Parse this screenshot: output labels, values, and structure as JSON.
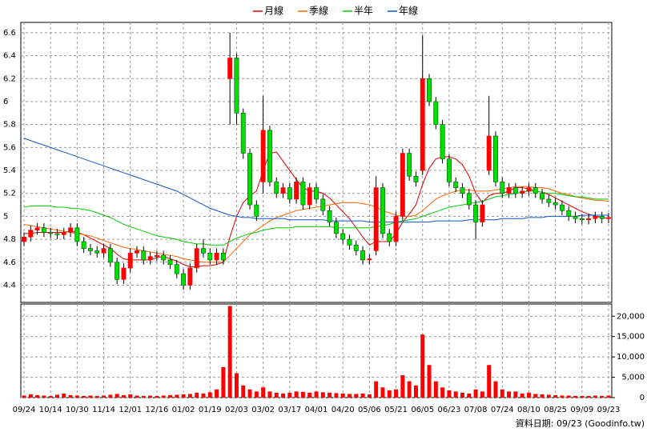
{
  "chart_data": [
    {
      "type": "candlestick",
      "categories": [
        "09/24",
        null,
        null,
        null,
        "10/14",
        null,
        null,
        null,
        "10/30",
        null,
        null,
        null,
        "11/14",
        null,
        null,
        null,
        "12/01",
        null,
        null,
        null,
        "12/16",
        null,
        null,
        null,
        "01/02",
        null,
        null,
        null,
        "01/19",
        null,
        null,
        null,
        "02/03",
        null,
        null,
        null,
        "03/02",
        null,
        null,
        null,
        "03/17",
        null,
        null,
        null,
        "04/01",
        null,
        null,
        null,
        "04/20",
        null,
        null,
        null,
        "05/06",
        null,
        null,
        null,
        "05/21",
        null,
        null,
        null,
        "06/05",
        null,
        null,
        null,
        "06/23",
        null,
        null,
        null,
        "07/08",
        null,
        null,
        null,
        "07/24",
        null,
        null,
        null,
        "08/10",
        null,
        null,
        null,
        "08/25",
        null,
        null,
        null,
        "09/09",
        null,
        null,
        null,
        "09/23"
      ],
      "open": [
        4.78,
        4.82,
        4.88,
        4.9,
        4.86,
        4.85,
        4.84,
        4.86,
        4.9,
        4.78,
        4.72,
        4.7,
        4.68,
        4.72,
        4.6,
        4.45,
        4.55,
        4.68,
        4.7,
        4.62,
        4.65,
        4.66,
        4.62,
        4.58,
        4.5,
        4.4,
        4.55,
        4.72,
        4.68,
        4.62,
        4.68,
        6.2,
        6.38,
        5.9,
        5.55,
        5.1,
        5.3,
        5.75,
        5.3,
        5.2,
        5.25,
        5.15,
        5.3,
        5.1,
        5.25,
        5.15,
        5.05,
        4.95,
        4.85,
        4.8,
        4.75,
        4.7,
        4.62,
        4.7,
        5.25,
        4.85,
        4.78,
        5.0,
        5.55,
        5.35,
        5.4,
        6.2,
        6.0,
        5.8,
        5.5,
        5.3,
        5.25,
        5.2,
        5.1,
        4.95,
        5.4,
        5.7,
        5.3,
        5.2,
        5.25,
        5.2,
        5.22,
        5.25,
        5.2,
        5.15,
        5.12,
        5.1,
        5.05,
        5.0,
        4.98,
        4.97,
        4.98,
        5.0,
        4.98
      ],
      "high": [
        4.86,
        4.92,
        4.94,
        4.94,
        4.9,
        4.89,
        4.9,
        4.94,
        4.94,
        4.82,
        4.76,
        4.74,
        4.76,
        4.76,
        4.64,
        4.59,
        4.72,
        4.74,
        4.74,
        4.69,
        4.7,
        4.7,
        4.66,
        4.62,
        4.54,
        4.59,
        4.76,
        4.8,
        4.72,
        4.72,
        4.72,
        6.6,
        6.42,
        5.94,
        5.59,
        5.14,
        6.05,
        5.79,
        5.34,
        5.29,
        5.29,
        5.34,
        5.34,
        5.29,
        5.29,
        5.19,
        5.09,
        4.99,
        4.89,
        4.84,
        4.79,
        4.74,
        4.67,
        5.35,
        5.29,
        4.89,
        5.04,
        5.59,
        5.59,
        5.39,
        6.58,
        6.24,
        6.04,
        5.84,
        5.54,
        5.34,
        5.29,
        5.24,
        5.14,
        5.14,
        6.05,
        5.74,
        5.34,
        5.29,
        5.29,
        5.26,
        5.29,
        5.29,
        5.24,
        5.19,
        5.16,
        5.14,
        5.09,
        5.04,
        5.02,
        5.02,
        5.04,
        5.04,
        5.03
      ],
      "low": [
        4.74,
        4.78,
        4.84,
        4.82,
        4.81,
        4.8,
        4.8,
        4.82,
        4.74,
        4.68,
        4.66,
        4.64,
        4.64,
        4.56,
        4.41,
        4.41,
        4.51,
        4.64,
        4.58,
        4.58,
        4.61,
        4.58,
        4.54,
        4.46,
        4.36,
        4.36,
        4.51,
        4.64,
        4.58,
        4.58,
        4.58,
        5.8,
        5.8,
        5.5,
        5.06,
        4.96,
        5.2,
        5.26,
        5.16,
        5.16,
        5.11,
        5.11,
        5.06,
        5.06,
        5.11,
        5.01,
        4.91,
        4.81,
        4.76,
        4.71,
        4.66,
        4.58,
        4.58,
        4.66,
        4.81,
        4.74,
        4.74,
        4.96,
        5.31,
        5.26,
        5.36,
        5.96,
        5.76,
        5.46,
        5.26,
        5.21,
        5.16,
        5.06,
        4.8,
        4.91,
        5.36,
        5.26,
        5.16,
        5.16,
        5.16,
        5.16,
        5.18,
        5.16,
        5.11,
        5.08,
        5.06,
        5.01,
        4.96,
        4.94,
        4.93,
        4.93,
        4.94,
        4.94,
        4.94
      ],
      "close": [
        4.82,
        4.88,
        4.9,
        4.86,
        4.85,
        4.84,
        4.86,
        4.9,
        4.78,
        4.72,
        4.7,
        4.68,
        4.72,
        4.6,
        4.45,
        4.55,
        4.68,
        4.7,
        4.62,
        4.65,
        4.66,
        4.62,
        4.58,
        4.5,
        4.4,
        4.55,
        4.72,
        4.68,
        4.62,
        4.68,
        4.62,
        6.38,
        5.9,
        5.55,
        5.1,
        5.0,
        5.75,
        5.3,
        5.2,
        5.25,
        5.15,
        5.3,
        5.1,
        5.25,
        5.15,
        5.05,
        4.95,
        4.85,
        4.8,
        4.75,
        4.7,
        4.62,
        4.63,
        5.25,
        4.85,
        4.78,
        5.0,
        5.55,
        5.35,
        5.3,
        6.2,
        6.0,
        5.8,
        5.5,
        5.3,
        5.25,
        5.2,
        5.1,
        4.95,
        5.1,
        5.7,
        5.3,
        5.2,
        5.25,
        5.2,
        5.22,
        5.25,
        5.2,
        5.15,
        5.12,
        5.1,
        5.05,
        5.0,
        4.98,
        4.97,
        4.98,
        5.0,
        4.98,
        4.99
      ],
      "up_color": "#ff0000",
      "down_color": "#00dd00",
      "series": [
        {
          "name": "月線",
          "color": "#dd0000",
          "values": [
            4.85,
            4.85,
            4.86,
            4.86,
            4.86,
            4.86,
            4.86,
            4.87,
            4.86,
            4.84,
            4.81,
            4.78,
            4.75,
            4.72,
            4.67,
            4.63,
            4.62,
            4.62,
            4.62,
            4.62,
            4.64,
            4.65,
            4.63,
            4.61,
            4.58,
            4.56,
            4.56,
            4.57,
            4.57,
            4.58,
            4.6,
            4.82,
            5.0,
            5.12,
            5.18,
            5.22,
            5.4,
            5.55,
            5.56,
            5.48,
            5.4,
            5.32,
            5.25,
            5.22,
            5.22,
            5.2,
            5.16,
            5.1,
            5.04,
            4.98,
            4.9,
            4.82,
            4.75,
            4.78,
            4.78,
            4.78,
            4.85,
            4.95,
            5.02,
            5.1,
            5.28,
            5.42,
            5.5,
            5.52,
            5.52,
            5.5,
            5.45,
            5.35,
            5.2,
            5.12,
            5.18,
            5.2,
            5.2,
            5.22,
            5.25,
            5.25,
            5.24,
            5.22,
            5.21,
            5.19,
            5.16,
            5.13,
            5.1,
            5.07,
            5.04,
            5.02,
            5.0,
            4.99,
            4.98
          ]
        },
        {
          "name": "季線",
          "color": "#ff6600",
          "values": [
            4.93,
            4.92,
            4.91,
            4.9,
            4.89,
            4.88,
            4.87,
            4.86,
            4.85,
            4.84,
            4.83,
            4.81,
            4.79,
            4.77,
            4.75,
            4.73,
            4.72,
            4.71,
            4.7,
            4.69,
            4.68,
            4.67,
            4.66,
            4.65,
            4.63,
            4.62,
            4.61,
            4.6,
            4.6,
            4.6,
            4.6,
            4.66,
            4.72,
            4.78,
            4.84,
            4.88,
            4.92,
            4.96,
            4.99,
            5.01,
            5.03,
            5.05,
            5.06,
            5.07,
            5.08,
            5.09,
            5.1,
            5.11,
            5.12,
            5.12,
            5.12,
            5.11,
            5.1,
            5.08,
            5.05,
            5.03,
            5.01,
            5.0,
            5.0,
            5.01,
            5.05,
            5.1,
            5.15,
            5.18,
            5.2,
            5.22,
            5.23,
            5.23,
            5.22,
            5.22,
            5.22,
            5.23,
            5.24,
            5.25,
            5.26,
            5.26,
            5.26,
            5.25,
            5.25,
            5.24,
            5.22,
            5.2,
            5.19,
            5.17,
            5.16,
            5.15,
            5.14,
            5.14,
            5.13
          ]
        },
        {
          "name": "半年",
          "color": "#00cc00",
          "values": [
            5.08,
            5.09,
            5.09,
            5.09,
            5.09,
            5.08,
            5.08,
            5.07,
            5.07,
            5.06,
            5.05,
            5.03,
            5.01,
            4.99,
            4.96,
            4.93,
            4.91,
            4.89,
            4.87,
            4.85,
            4.83,
            4.82,
            4.81,
            4.8,
            4.78,
            4.77,
            4.76,
            4.76,
            4.75,
            4.75,
            4.75,
            4.78,
            4.81,
            4.83,
            4.85,
            4.86,
            4.88,
            4.89,
            4.9,
            4.9,
            4.9,
            4.91,
            4.91,
            4.91,
            4.91,
            4.91,
            4.91,
            4.9,
            4.9,
            4.9,
            4.9,
            4.9,
            4.9,
            4.91,
            4.92,
            4.93,
            4.95,
            4.96,
            4.97,
            4.98,
            5.0,
            5.02,
            5.04,
            5.06,
            5.08,
            5.09,
            5.1,
            5.11,
            5.12,
            5.13,
            5.15,
            5.17,
            5.18,
            5.19,
            5.2,
            5.21,
            5.22,
            5.22,
            5.21,
            5.2,
            5.2,
            5.19,
            5.18,
            5.17,
            5.17,
            5.16,
            5.15,
            5.15,
            5.15
          ]
        },
        {
          "name": "年線",
          "color": "#1155cc",
          "values": [
            5.68,
            5.66,
            5.64,
            5.62,
            5.6,
            5.58,
            5.56,
            5.54,
            5.52,
            5.5,
            5.48,
            5.46,
            5.44,
            5.42,
            5.4,
            5.38,
            5.36,
            5.34,
            5.32,
            5.3,
            5.28,
            5.26,
            5.24,
            5.22,
            5.19,
            5.16,
            5.13,
            5.1,
            5.07,
            5.05,
            5.03,
            5.01,
            5.0,
            4.99,
            4.99,
            4.98,
            4.98,
            4.98,
            4.98,
            4.98,
            4.97,
            4.97,
            4.97,
            4.97,
            4.97,
            4.97,
            4.96,
            4.96,
            4.96,
            4.96,
            4.96,
            4.96,
            4.95,
            4.95,
            4.95,
            4.95,
            4.95,
            4.95,
            4.95,
            4.95,
            4.95,
            4.95,
            4.96,
            4.96,
            4.96,
            4.96,
            4.96,
            4.97,
            4.97,
            4.97,
            4.97,
            4.97,
            4.98,
            4.98,
            4.98,
            4.98,
            4.99,
            4.99,
            4.99,
            5.0,
            5.0,
            5.0,
            5.0,
            5.0,
            5.01,
            5.01,
            5.01,
            5.01,
            5.01
          ]
        }
      ],
      "ylim": [
        4.25,
        6.69
      ],
      "yticks": [
        4.4,
        4.6,
        4.8,
        5,
        5.2,
        5.4,
        5.6,
        5.8,
        6,
        6.2,
        6.4,
        6.6
      ],
      "grid": true,
      "legend": "top"
    },
    {
      "type": "bar",
      "color": "#ff0000",
      "values": [
        500,
        800,
        600,
        500,
        400,
        700,
        1000,
        600,
        500,
        400,
        500,
        400,
        500,
        700,
        900,
        600,
        800,
        500,
        400,
        500,
        400,
        500,
        600,
        700,
        800,
        900,
        1200,
        1000,
        1300,
        2000,
        7500,
        22500,
        6000,
        3000,
        2000,
        1500,
        2500,
        1500,
        1200,
        1000,
        1200,
        1500,
        1400,
        1200,
        1500,
        1300,
        1200,
        1100,
        1000,
        900,
        900,
        1000,
        800,
        4000,
        2500,
        1800,
        2000,
        5500,
        4000,
        3000,
        15500,
        8000,
        4000,
        2500,
        1800,
        1500,
        1200,
        1000,
        2000,
        1500,
        8000,
        4000,
        2000,
        1500,
        1500,
        1000,
        1200,
        900,
        800,
        700,
        600,
        500,
        500,
        400,
        400,
        400,
        500,
        400,
        500
      ],
      "ylim": [
        0,
        23000
      ],
      "yticks": [
        0,
        {
          "value": 5000,
          "label": "5,000"
        },
        {
          "value": 10000,
          "label": "10,000"
        },
        {
          "value": 15000,
          "label": "15,000"
        },
        {
          "value": 20000,
          "label": "20,000"
        }
      ],
      "grid": true
    }
  ],
  "source": "資料日期: 09/23 (Goodinfo.tw)"
}
